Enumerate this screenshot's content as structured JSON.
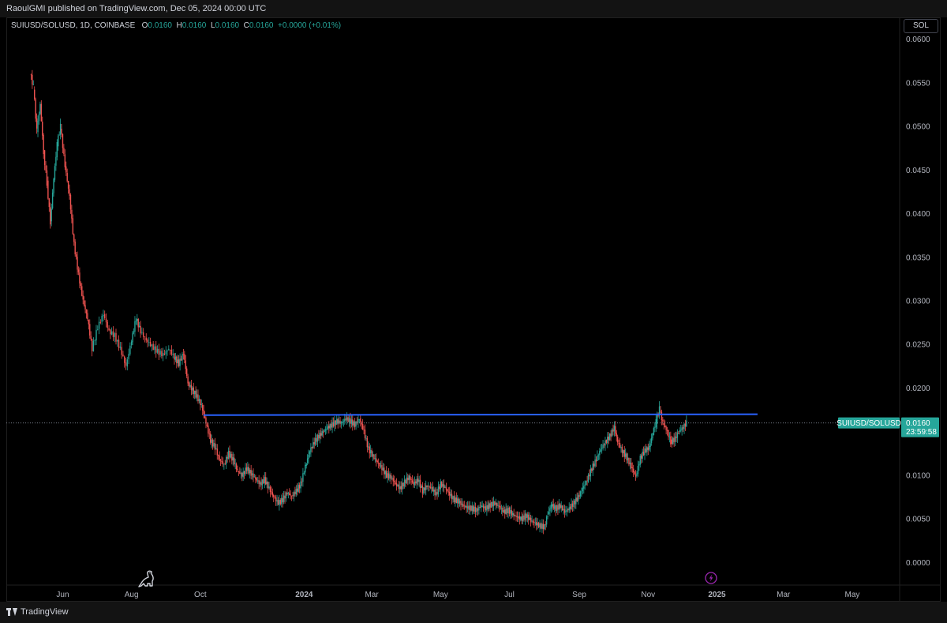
{
  "header": {
    "published": "RaoulGMI published on TradingView.com, Dec 05, 2024 00:00 UTC"
  },
  "legend": {
    "symbol": "SUIUSD/SOLUSD, 1D, COINBASE",
    "o_label": "O",
    "o_value": "0.0160",
    "h_label": "H",
    "h_value": "0.0160",
    "l_label": "L",
    "l_value": "0.0160",
    "c_label": "C",
    "c_value": "0.0160",
    "change": "+0.0000 (+0.01%)"
  },
  "currency_button": "SOL",
  "price_label": {
    "symbol": "SUIUSD/SOLUSD",
    "price": "0.0160",
    "countdown": "23:59:58"
  },
  "footer": {
    "brand": "TradingView"
  },
  "colors": {
    "up": "#26a69a",
    "down": "#ef5350",
    "trendline": "#2962ff",
    "background": "#000000",
    "alert": "#9c27b0"
  },
  "icons": {
    "watermark": "dinosaur-icon",
    "alert": "lightning-icon",
    "logo": "tradingview-logo-icon"
  },
  "chart_data": {
    "type": "candlestick",
    "title": "SUIUSD/SOLUSD, 1D, COINBASE",
    "ylim": [
      -0.0025,
      0.0625
    ],
    "y_ticks": [
      "0.0600",
      "0.0550",
      "0.0500",
      "0.0450",
      "0.0400",
      "0.0350",
      "0.0300",
      "0.0250",
      "0.0200",
      "0.0150",
      "0.0100",
      "0.0050",
      "0.0000"
    ],
    "x_ticks": [
      {
        "label": "Jun",
        "date": "2023-06-01"
      },
      {
        "label": "Aug",
        "date": "2023-08-01"
      },
      {
        "label": "Oct",
        "date": "2023-10-01"
      },
      {
        "label": "2024",
        "date": "2024-01-01"
      },
      {
        "label": "Mar",
        "date": "2024-03-01"
      },
      {
        "label": "May",
        "date": "2024-05-01"
      },
      {
        "label": "Jul",
        "date": "2024-07-01"
      },
      {
        "label": "Sep",
        "date": "2024-09-01"
      },
      {
        "label": "Nov",
        "date": "2024-11-01"
      },
      {
        "label": "2025",
        "date": "2025-01-01"
      },
      {
        "label": "Mar",
        "date": "2025-03-01"
      },
      {
        "label": "May",
        "date": "2025-05-01"
      }
    ],
    "xlim": [
      "2023-04-12",
      "2025-06-12"
    ],
    "last_price": 0.016,
    "trendline": {
      "start": {
        "date": "2023-10-04",
        "value": 0.0169
      },
      "end": {
        "date": "2025-02-06",
        "value": 0.017
      }
    },
    "series": [
      {
        "date": "2023-05-03",
        "value": 0.0562
      },
      {
        "date": "2023-05-06",
        "value": 0.0545
      },
      {
        "date": "2023-05-09",
        "value": 0.0495
      },
      {
        "date": "2023-05-12",
        "value": 0.0525
      },
      {
        "date": "2023-05-15",
        "value": 0.047
      },
      {
        "date": "2023-05-18",
        "value": 0.0435
      },
      {
        "date": "2023-05-21",
        "value": 0.039
      },
      {
        "date": "2023-05-24",
        "value": 0.044
      },
      {
        "date": "2023-05-27",
        "value": 0.048
      },
      {
        "date": "2023-05-30",
        "value": 0.05
      },
      {
        "date": "2023-06-03",
        "value": 0.0455
      },
      {
        "date": "2023-06-07",
        "value": 0.042
      },
      {
        "date": "2023-06-11",
        "value": 0.0365
      },
      {
        "date": "2023-06-15",
        "value": 0.033
      },
      {
        "date": "2023-06-19",
        "value": 0.03
      },
      {
        "date": "2023-06-23",
        "value": 0.028
      },
      {
        "date": "2023-06-27",
        "value": 0.0245
      },
      {
        "date": "2023-07-02",
        "value": 0.027
      },
      {
        "date": "2023-07-07",
        "value": 0.0285
      },
      {
        "date": "2023-07-12",
        "value": 0.0265
      },
      {
        "date": "2023-07-17",
        "value": 0.026
      },
      {
        "date": "2023-07-22",
        "value": 0.0245
      },
      {
        "date": "2023-07-27",
        "value": 0.0225
      },
      {
        "date": "2023-08-01",
        "value": 0.0255
      },
      {
        "date": "2023-08-05",
        "value": 0.028
      },
      {
        "date": "2023-08-09",
        "value": 0.0265
      },
      {
        "date": "2023-08-14",
        "value": 0.0255
      },
      {
        "date": "2023-08-19",
        "value": 0.0248
      },
      {
        "date": "2023-08-24",
        "value": 0.0242
      },
      {
        "date": "2023-08-29",
        "value": 0.0238
      },
      {
        "date": "2023-09-03",
        "value": 0.0245
      },
      {
        "date": "2023-09-08",
        "value": 0.0235
      },
      {
        "date": "2023-09-12",
        "value": 0.0228
      },
      {
        "date": "2023-09-16",
        "value": 0.024
      },
      {
        "date": "2023-09-20",
        "value": 0.0205
      },
      {
        "date": "2023-09-24",
        "value": 0.0198
      },
      {
        "date": "2023-09-28",
        "value": 0.019
      },
      {
        "date": "2023-10-02",
        "value": 0.018
      },
      {
        "date": "2023-10-06",
        "value": 0.016
      },
      {
        "date": "2023-10-10",
        "value": 0.014
      },
      {
        "date": "2023-10-14",
        "value": 0.0132
      },
      {
        "date": "2023-10-18",
        "value": 0.0118
      },
      {
        "date": "2023-10-22",
        "value": 0.0112
      },
      {
        "date": "2023-10-26",
        "value": 0.0125
      },
      {
        "date": "2023-10-30",
        "value": 0.0118
      },
      {
        "date": "2023-11-03",
        "value": 0.0105
      },
      {
        "date": "2023-11-07",
        "value": 0.01
      },
      {
        "date": "2023-11-11",
        "value": 0.0108
      },
      {
        "date": "2023-11-15",
        "value": 0.0102
      },
      {
        "date": "2023-11-19",
        "value": 0.0096
      },
      {
        "date": "2023-11-23",
        "value": 0.009
      },
      {
        "date": "2023-11-27",
        "value": 0.0095
      },
      {
        "date": "2023-12-01",
        "value": 0.0085
      },
      {
        "date": "2023-12-05",
        "value": 0.0075
      },
      {
        "date": "2023-12-09",
        "value": 0.0068
      },
      {
        "date": "2023-12-13",
        "value": 0.0072
      },
      {
        "date": "2023-12-17",
        "value": 0.008
      },
      {
        "date": "2023-12-21",
        "value": 0.0076
      },
      {
        "date": "2023-12-25",
        "value": 0.0082
      },
      {
        "date": "2023-12-29",
        "value": 0.009
      },
      {
        "date": "2024-01-02",
        "value": 0.011
      },
      {
        "date": "2024-01-06",
        "value": 0.0128
      },
      {
        "date": "2024-01-10",
        "value": 0.0138
      },
      {
        "date": "2024-01-14",
        "value": 0.0145
      },
      {
        "date": "2024-01-18",
        "value": 0.015
      },
      {
        "date": "2024-01-22",
        "value": 0.0155
      },
      {
        "date": "2024-01-26",
        "value": 0.0158
      },
      {
        "date": "2024-01-30",
        "value": 0.0162
      },
      {
        "date": "2024-02-03",
        "value": 0.016
      },
      {
        "date": "2024-02-07",
        "value": 0.0165
      },
      {
        "date": "2024-02-11",
        "value": 0.0162
      },
      {
        "date": "2024-02-15",
        "value": 0.0158
      },
      {
        "date": "2024-02-19",
        "value": 0.0165
      },
      {
        "date": "2024-02-23",
        "value": 0.015
      },
      {
        "date": "2024-02-27",
        "value": 0.013
      },
      {
        "date": "2024-03-02",
        "value": 0.0122
      },
      {
        "date": "2024-03-06",
        "value": 0.0115
      },
      {
        "date": "2024-03-10",
        "value": 0.0108
      },
      {
        "date": "2024-03-14",
        "value": 0.01
      },
      {
        "date": "2024-03-18",
        "value": 0.0098
      },
      {
        "date": "2024-03-22",
        "value": 0.009
      },
      {
        "date": "2024-03-26",
        "value": 0.0085
      },
      {
        "date": "2024-03-30",
        "value": 0.0092
      },
      {
        "date": "2024-04-03",
        "value": 0.0098
      },
      {
        "date": "2024-04-07",
        "value": 0.009
      },
      {
        "date": "2024-04-11",
        "value": 0.0095
      },
      {
        "date": "2024-04-15",
        "value": 0.0082
      },
      {
        "date": "2024-04-19",
        "value": 0.0088
      },
      {
        "date": "2024-04-23",
        "value": 0.0085
      },
      {
        "date": "2024-04-27",
        "value": 0.0078
      },
      {
        "date": "2024-05-01",
        "value": 0.009
      },
      {
        "date": "2024-05-05",
        "value": 0.0086
      },
      {
        "date": "2024-05-09",
        "value": 0.0078
      },
      {
        "date": "2024-05-13",
        "value": 0.0072
      },
      {
        "date": "2024-05-17",
        "value": 0.007
      },
      {
        "date": "2024-05-21",
        "value": 0.0065
      },
      {
        "date": "2024-05-25",
        "value": 0.0063
      },
      {
        "date": "2024-05-29",
        "value": 0.0062
      },
      {
        "date": "2024-06-02",
        "value": 0.006
      },
      {
        "date": "2024-06-06",
        "value": 0.0065
      },
      {
        "date": "2024-06-10",
        "value": 0.0062
      },
      {
        "date": "2024-06-14",
        "value": 0.0066
      },
      {
        "date": "2024-06-18",
        "value": 0.0068
      },
      {
        "date": "2024-06-22",
        "value": 0.0064
      },
      {
        "date": "2024-06-26",
        "value": 0.0058
      },
      {
        "date": "2024-06-30",
        "value": 0.006
      },
      {
        "date": "2024-07-04",
        "value": 0.0055
      },
      {
        "date": "2024-07-08",
        "value": 0.0052
      },
      {
        "date": "2024-07-12",
        "value": 0.005
      },
      {
        "date": "2024-07-16",
        "value": 0.0054
      },
      {
        "date": "2024-07-20",
        "value": 0.0048
      },
      {
        "date": "2024-07-24",
        "value": 0.0045
      },
      {
        "date": "2024-07-28",
        "value": 0.0042
      },
      {
        "date": "2024-08-01",
        "value": 0.0041
      },
      {
        "date": "2024-08-04",
        "value": 0.0055
      },
      {
        "date": "2024-08-07",
        "value": 0.0066
      },
      {
        "date": "2024-08-11",
        "value": 0.0062
      },
      {
        "date": "2024-08-15",
        "value": 0.0065
      },
      {
        "date": "2024-08-19",
        "value": 0.0058
      },
      {
        "date": "2024-08-23",
        "value": 0.0062
      },
      {
        "date": "2024-08-27",
        "value": 0.0068
      },
      {
        "date": "2024-08-31",
        "value": 0.0075
      },
      {
        "date": "2024-09-04",
        "value": 0.0085
      },
      {
        "date": "2024-09-08",
        "value": 0.0095
      },
      {
        "date": "2024-09-12",
        "value": 0.0108
      },
      {
        "date": "2024-09-16",
        "value": 0.0118
      },
      {
        "date": "2024-09-20",
        "value": 0.013
      },
      {
        "date": "2024-09-24",
        "value": 0.0138
      },
      {
        "date": "2024-09-28",
        "value": 0.0145
      },
      {
        "date": "2024-10-02",
        "value": 0.0155
      },
      {
        "date": "2024-10-05",
        "value": 0.0138
      },
      {
        "date": "2024-10-09",
        "value": 0.0128
      },
      {
        "date": "2024-10-13",
        "value": 0.012
      },
      {
        "date": "2024-10-17",
        "value": 0.011
      },
      {
        "date": "2024-10-21",
        "value": 0.0098
      },
      {
        "date": "2024-10-25",
        "value": 0.012
      },
      {
        "date": "2024-10-29",
        "value": 0.0128
      },
      {
        "date": "2024-11-02",
        "value": 0.0132
      },
      {
        "date": "2024-11-05",
        "value": 0.0148
      },
      {
        "date": "2024-11-08",
        "value": 0.0162
      },
      {
        "date": "2024-11-11",
        "value": 0.0176
      },
      {
        "date": "2024-11-14",
        "value": 0.016
      },
      {
        "date": "2024-11-18",
        "value": 0.015
      },
      {
        "date": "2024-11-21",
        "value": 0.0138
      },
      {
        "date": "2024-11-25",
        "value": 0.0142
      },
      {
        "date": "2024-11-28",
        "value": 0.015
      },
      {
        "date": "2024-12-02",
        "value": 0.0155
      },
      {
        "date": "2024-12-05",
        "value": 0.016
      }
    ]
  }
}
